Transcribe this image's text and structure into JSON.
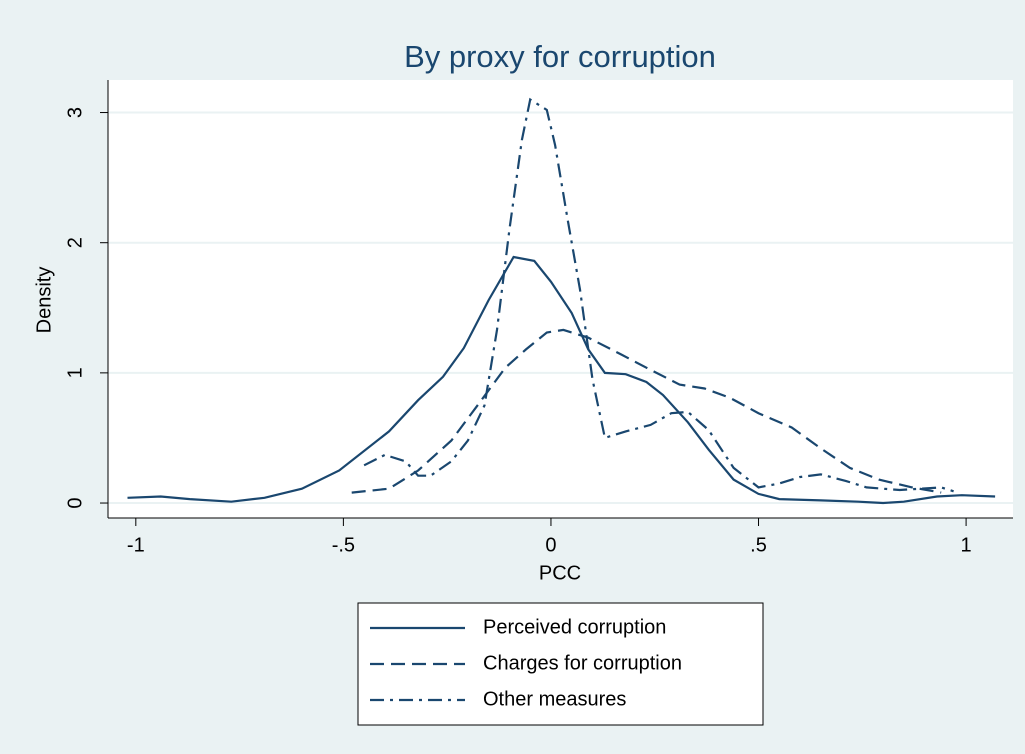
{
  "chart_data": {
    "type": "line",
    "title": "By proxy for corruption",
    "xlabel": "PCC",
    "ylabel": "Density",
    "xlim": [
      -1.067,
      1.113
    ],
    "ylim": [
      -0.115,
      3.25
    ],
    "xticks": [
      -1,
      {
        "value": -0.5,
        "label": "-.5"
      },
      0,
      {
        "value": 0.5,
        "label": ".5"
      },
      1
    ],
    "yticks": [
      0,
      1,
      2,
      3
    ],
    "grid": true,
    "legend": "bottom",
    "series": [
      {
        "name": "Perceived corruption",
        "color": "#1a476f",
        "dash": "solid",
        "x": [
          -1.02,
          -0.94,
          -0.87,
          -0.77,
          -0.69,
          -0.6,
          -0.51,
          -0.39,
          -0.32,
          -0.26,
          -0.21,
          -0.15,
          -0.09,
          -0.04,
          0.0,
          0.05,
          0.09,
          0.13,
          0.18,
          0.23,
          0.27,
          0.33,
          0.38,
          0.44,
          0.5,
          0.55,
          0.65,
          0.74,
          0.8,
          0.85,
          0.93,
          0.99,
          1.07
        ],
        "values": [
          0.04,
          0.05,
          0.03,
          0.01,
          0.04,
          0.11,
          0.25,
          0.55,
          0.79,
          0.97,
          1.19,
          1.56,
          1.89,
          1.86,
          1.7,
          1.46,
          1.18,
          1.0,
          0.99,
          0.93,
          0.83,
          0.62,
          0.41,
          0.18,
          0.07,
          0.03,
          0.02,
          0.01,
          0.0,
          0.01,
          0.05,
          0.06,
          0.05
        ]
      },
      {
        "name": "Charges for corruption",
        "color": "#1a476f",
        "dash": "dash",
        "x": [
          -0.48,
          -0.39,
          -0.32,
          -0.24,
          -0.17,
          -0.11,
          -0.06,
          -0.01,
          0.03,
          0.09,
          0.17,
          0.23,
          0.31,
          0.37,
          0.43,
          0.5,
          0.58,
          0.65,
          0.72,
          0.79,
          0.87,
          0.94
        ],
        "values": [
          0.08,
          0.11,
          0.25,
          0.48,
          0.78,
          1.04,
          1.18,
          1.31,
          1.33,
          1.27,
          1.14,
          1.04,
          0.91,
          0.88,
          0.81,
          0.69,
          0.58,
          0.42,
          0.27,
          0.18,
          0.12,
          0.08
        ]
      },
      {
        "name": "Other measures",
        "color": "#1a476f",
        "dash": "dashdot",
        "x": [
          -0.45,
          -0.4,
          -0.35,
          -0.32,
          -0.29,
          -0.24,
          -0.2,
          -0.16,
          -0.13,
          -0.1,
          -0.07,
          -0.05,
          -0.01,
          0.01,
          0.04,
          0.07,
          0.1,
          0.13,
          0.18,
          0.24,
          0.29,
          0.33,
          0.38,
          0.44,
          0.5,
          0.55,
          0.6,
          0.65,
          0.71,
          0.76,
          0.84,
          0.94,
          0.97
        ],
        "values": [
          0.29,
          0.37,
          0.32,
          0.21,
          0.21,
          0.32,
          0.48,
          0.75,
          1.33,
          2.1,
          2.79,
          3.1,
          3.02,
          2.75,
          2.18,
          1.64,
          0.95,
          0.5,
          0.55,
          0.6,
          0.69,
          0.7,
          0.56,
          0.27,
          0.12,
          0.15,
          0.2,
          0.22,
          0.17,
          0.12,
          0.1,
          0.12,
          0.09
        ]
      }
    ]
  }
}
